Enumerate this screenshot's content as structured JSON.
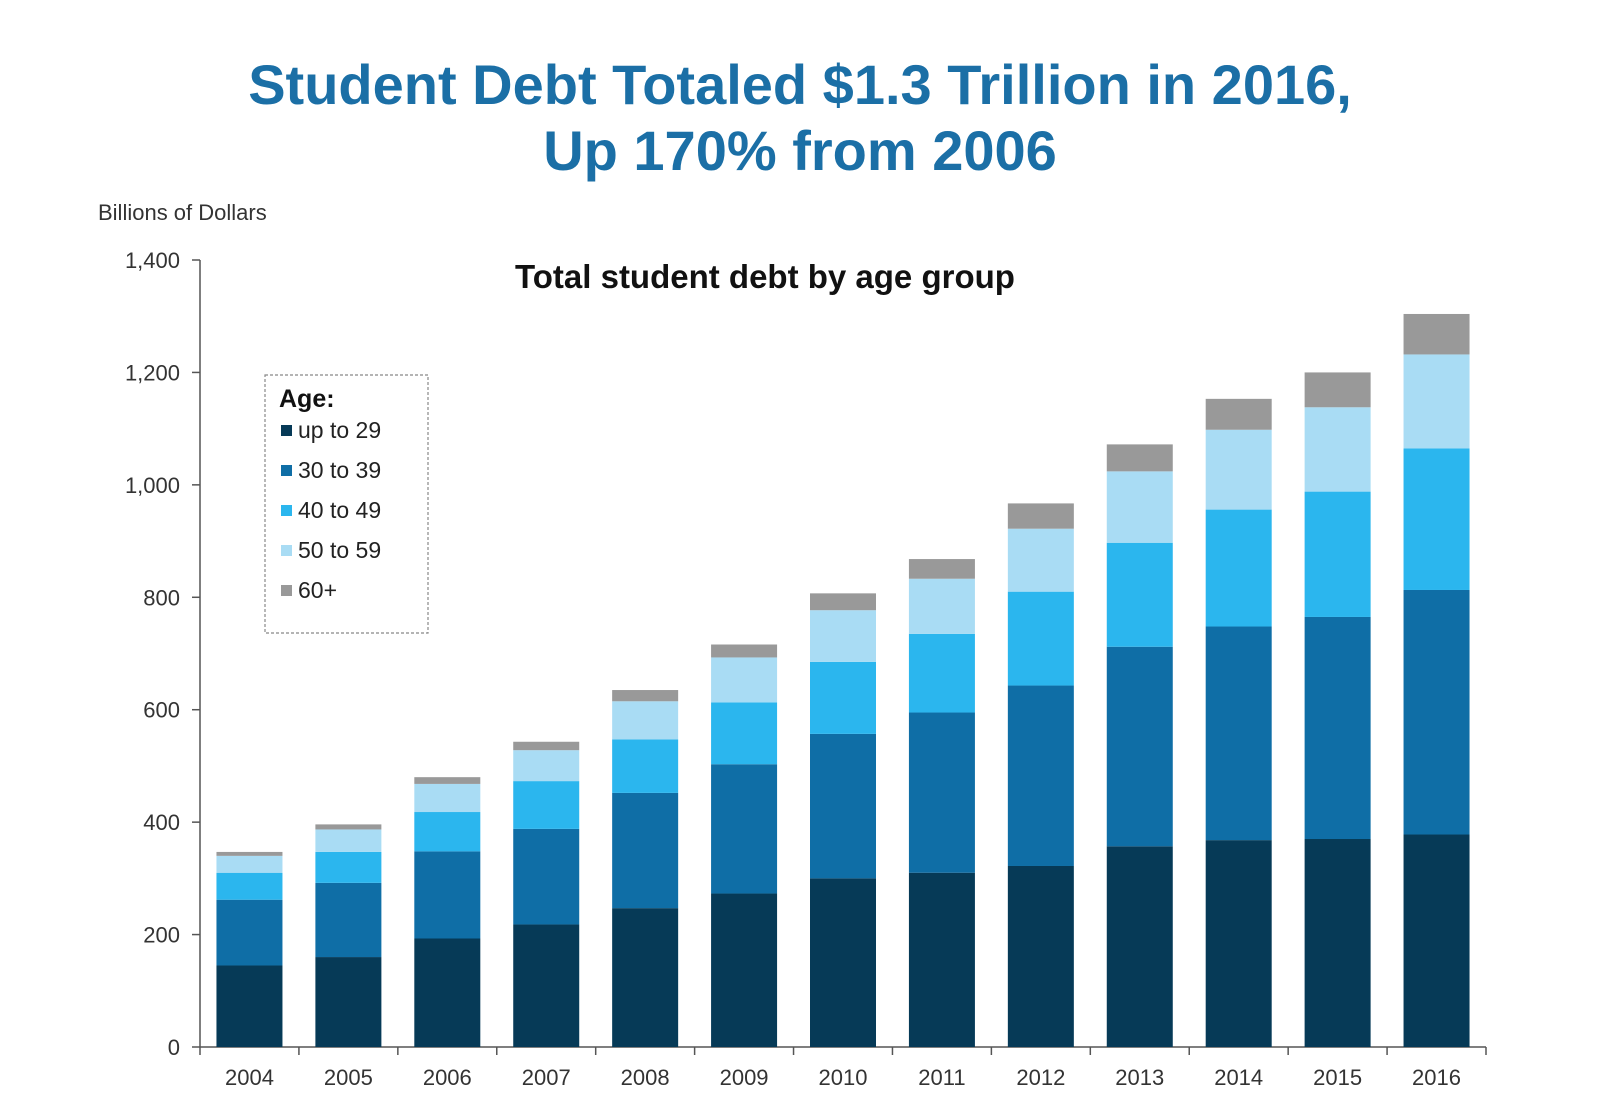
{
  "header": {
    "title_line1": "Student Debt Totaled $1.3 Trillion in 2016,",
    "title_line2": "Up 170% from 2006"
  },
  "chart_data": {
    "type": "bar",
    "stacked": true,
    "title": "Total student debt by age group",
    "ylabel": "Billions of Dollars",
    "xlabel": "",
    "ylim": [
      0,
      1400
    ],
    "yticks": [
      0,
      200,
      400,
      600,
      800,
      1000,
      1200,
      1400
    ],
    "ytick_labels": [
      "0",
      "200",
      "400",
      "600",
      "800",
      "1,000",
      "1,200",
      "1,400"
    ],
    "grid": false,
    "legend": {
      "title": "Age:",
      "position": "top-left"
    },
    "categories": [
      "2004",
      "2005",
      "2006",
      "2007",
      "2008",
      "2009",
      "2010",
      "2011",
      "2012",
      "2013",
      "2014",
      "2015",
      "2016"
    ],
    "series": [
      {
        "name": "up to 29",
        "color": "#063a57",
        "values": [
          145,
          160,
          193,
          218,
          247,
          273,
          300,
          310,
          322,
          357,
          368,
          370,
          378
        ]
      },
      {
        "name": "30 to 39",
        "color": "#0f6ea6",
        "values": [
          117,
          132,
          155,
          170,
          205,
          230,
          257,
          285,
          321,
          355,
          380,
          395,
          435
        ]
      },
      {
        "name": "40 to 49",
        "color": "#2bb6ee",
        "values": [
          48,
          55,
          70,
          85,
          95,
          110,
          128,
          140,
          167,
          185,
          208,
          223,
          252
        ]
      },
      {
        "name": "50 to 59",
        "color": "#a9dcf4",
        "values": [
          30,
          40,
          50,
          55,
          68,
          80,
          92,
          98,
          112,
          127,
          142,
          150,
          167
        ]
      },
      {
        "name": "60+",
        "color": "#999999",
        "values": [
          7,
          9,
          12,
          15,
          20,
          23,
          30,
          35,
          45,
          48,
          55,
          62,
          72
        ]
      }
    ]
  }
}
